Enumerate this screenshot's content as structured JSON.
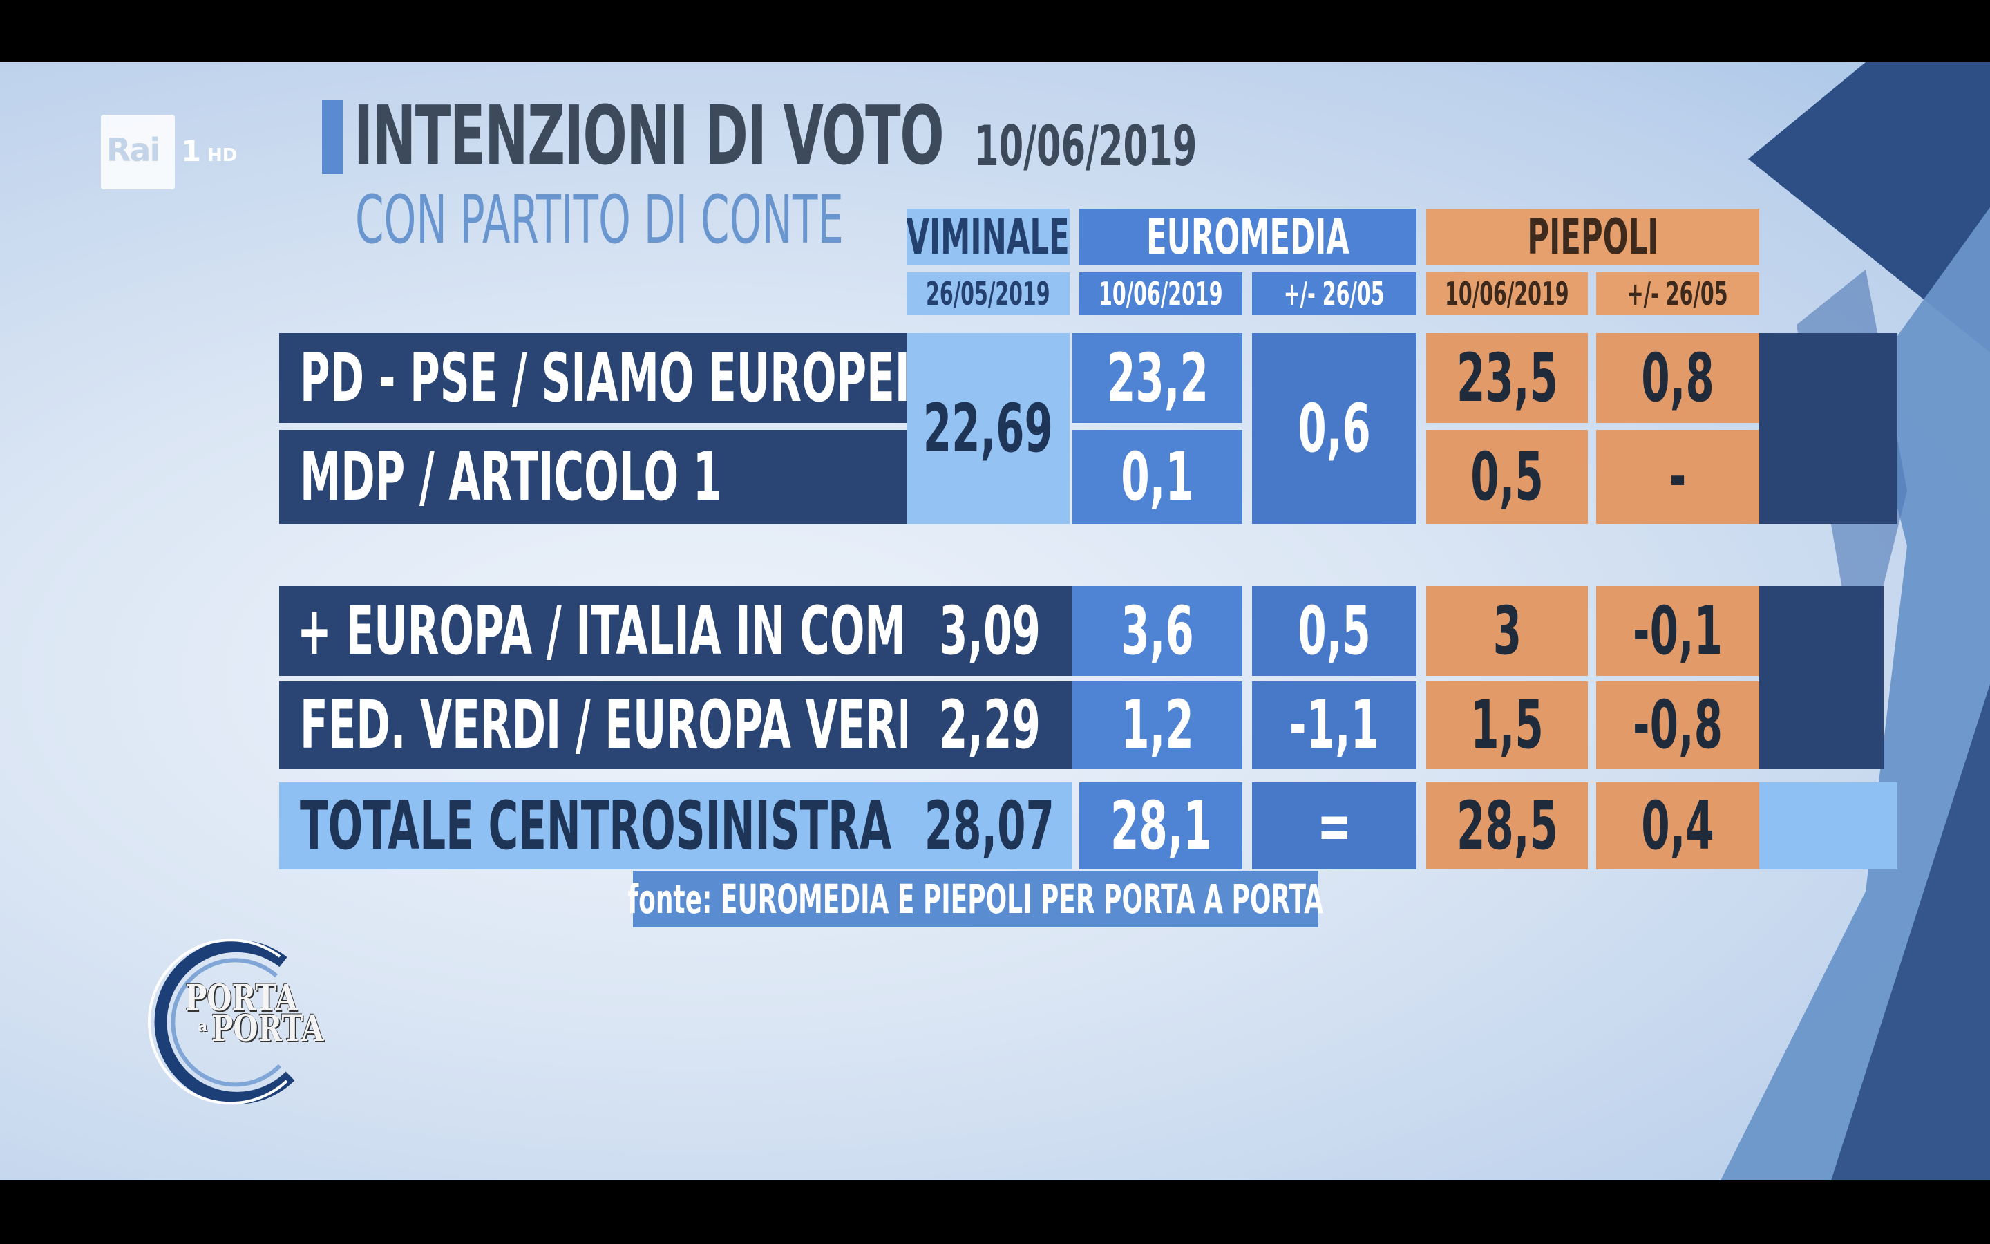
{
  "channel": {
    "logo": "Rai",
    "number": "1",
    "quality": "HD"
  },
  "title": {
    "main": "INTENZIONI DI VOTO",
    "date": "10/06/2019",
    "subtitle": "CON PARTITO DI CONTE"
  },
  "columns": {
    "viminale": {
      "name": "VIMINALE",
      "date": "26/05/2019"
    },
    "euromedia": {
      "name": "EUROMEDIA",
      "date": "10/06/2019",
      "delta": "+/- 26/05"
    },
    "piepoli": {
      "name": "PIEPOLI",
      "date": "10/06/2019",
      "delta": "+/- 26/05"
    }
  },
  "rows": [
    {
      "label": "PD - PSE / SIAMO EUROPEI",
      "euromedia": "23,2",
      "piepoli": "23,5",
      "piepoli_delta": "0,8"
    },
    {
      "label": "MDP / ARTICOLO 1",
      "euromedia": "0,1",
      "piepoli": "0,5",
      "piepoli_delta": "-"
    },
    {
      "label": "+ EUROPA / ITALIA IN COMUNE / PDE",
      "viminale": "3,09",
      "euromedia": "3,6",
      "euromedia_delta": "0,5",
      "piepoli": "3",
      "piepoli_delta": "-0,1"
    },
    {
      "label": "FED. VERDI / EUROPA VERDE",
      "viminale": "2,29",
      "euromedia": "1,2",
      "euromedia_delta": "-1,1",
      "piepoli": "1,5",
      "piepoli_delta": "-0,8"
    },
    {
      "label": "TOTALE CENTROSINISTRA",
      "viminale": "28,07",
      "euromedia": "28,1",
      "euromedia_delta": "=",
      "piepoli": "28,5",
      "piepoli_delta": "0,4"
    }
  ],
  "merged": {
    "viminale_rows_1_2": "22,69",
    "euromedia_delta_rows_1_2": "0,6"
  },
  "source": "fonte: EUROMEDIA E PIEPOLI PER PORTA A PORTA",
  "show_logo": {
    "line1": "PORTA",
    "line2": "PORTA",
    "connector": "a"
  },
  "colors": {
    "dark_row": "#2a4573",
    "viminale": "#94c2f2",
    "euromedia": "#4f83d4",
    "piepoli": "#e29a68",
    "total_row": "#8fc0f4",
    "title": "#3d4a5c",
    "subtitle": "#6a96cf"
  }
}
